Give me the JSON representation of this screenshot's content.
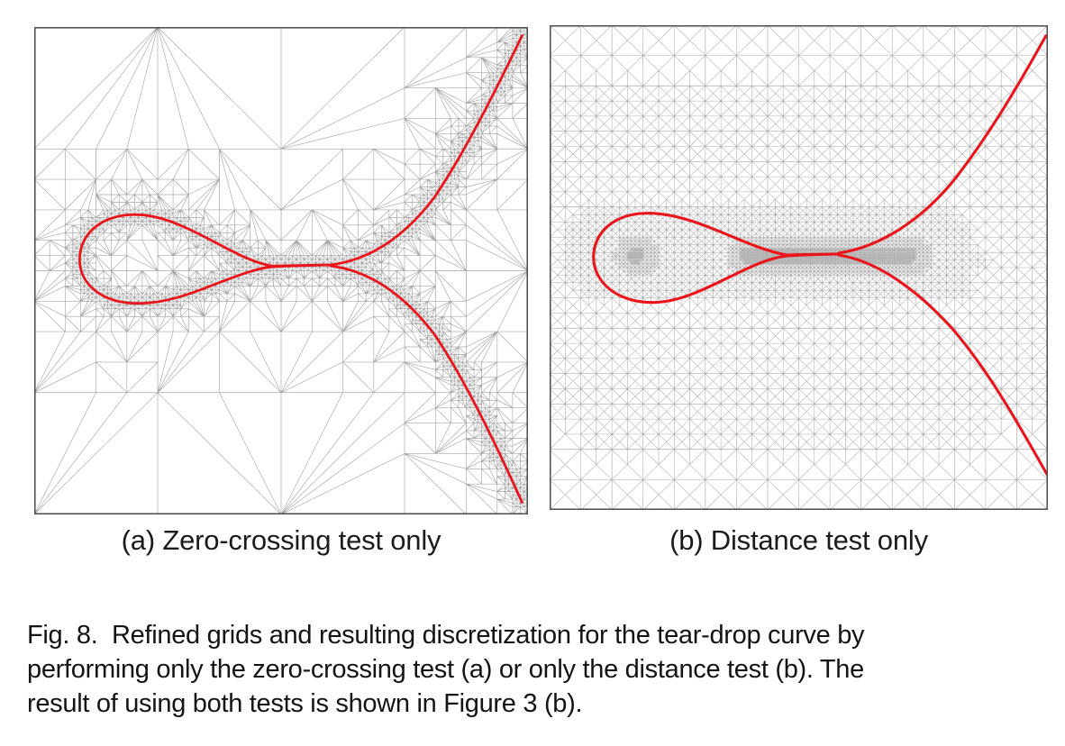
{
  "figure": {
    "label": "Fig. 8.",
    "panels": [
      {
        "id": "a",
        "subcaption": "(a) Zero-crossing test only"
      },
      {
        "id": "b",
        "subcaption": "(b) Distance test only"
      }
    ],
    "caption_lines": [
      "Fig. 8.  Refined grids and resulting discretization for the tear-drop curve by",
      "performing only the zero-crossing test (a) or only the distance test (b). The",
      "result of using both tests is shown in Figure 3 (b)."
    ],
    "colors": {
      "curve": "#e9151b",
      "mesh": "#969696",
      "panel_border": "#4d4d4d",
      "text": "#141414",
      "background": "#ffffff"
    }
  }
}
